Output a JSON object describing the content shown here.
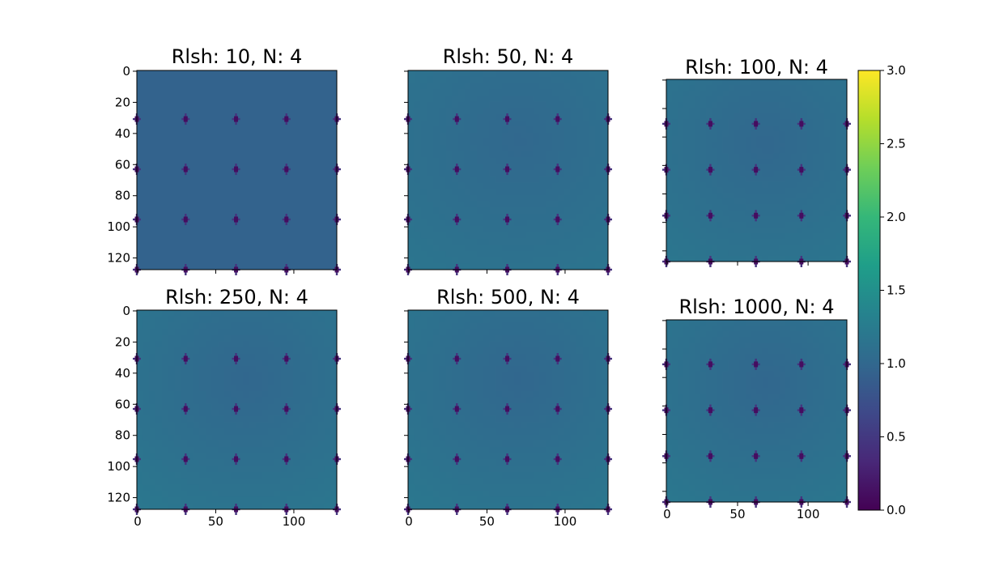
{
  "chart_data": {
    "type": "heatmap",
    "colormap": "viridis",
    "colorbar": {
      "vmin": 0.0,
      "vmax": 3.0,
      "ticks": [
        "0.0",
        "0.5",
        "1.0",
        "1.5",
        "2.0",
        "2.5",
        "3.0"
      ],
      "colors": [
        "#440154",
        "#482878",
        "#3e4989",
        "#31688e",
        "#26828e",
        "#1f9e89",
        "#35b779",
        "#6ece58",
        "#b5de2b",
        "#fde725"
      ]
    },
    "grid_size": 128,
    "y_ticks": [
      "0",
      "20",
      "40",
      "60",
      "80",
      "100",
      "120"
    ],
    "x_ticks": [
      "0",
      "50",
      "100"
    ],
    "panels": [
      {
        "title": "Rlsh: 10, N: 4",
        "base_value": 0.95,
        "gradient": 0.0
      },
      {
        "title": "Rlsh: 50, N: 4",
        "base_value": 1.05,
        "gradient": 0.2
      },
      {
        "title": "Rlsh: 100, N: 4",
        "base_value": 1.05,
        "gradient": 0.22
      },
      {
        "title": "Rlsh: 250, N: 4",
        "base_value": 1.05,
        "gradient": 0.25
      },
      {
        "title": "Rlsh: 500, N: 4",
        "base_value": 1.05,
        "gradient": 0.25
      },
      {
        "title": "Rlsh: 1000, N: 4",
        "base_value": 1.05,
        "gradient": 0.25
      }
    ],
    "spike_centers": [
      0,
      31,
      63,
      95,
      127
    ],
    "spike_min_value": 0.1
  }
}
